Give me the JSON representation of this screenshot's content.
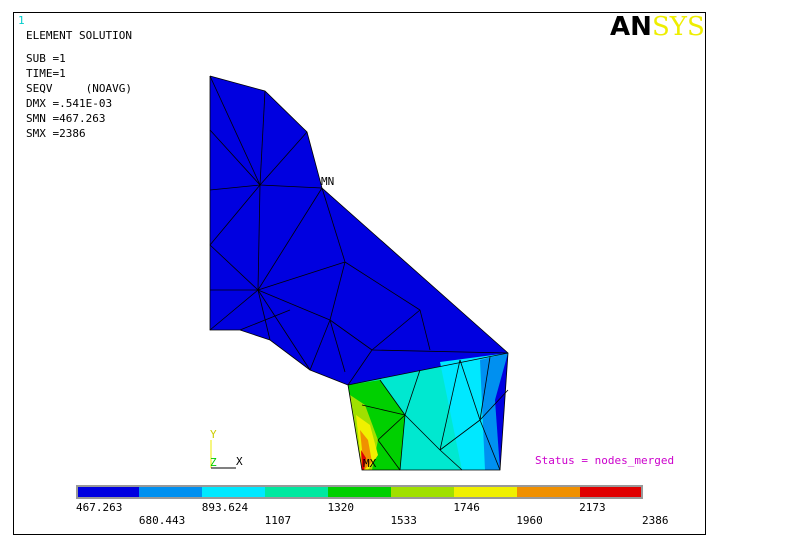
{
  "window_number": "1",
  "header": {
    "title": "ELEMENT SOLUTION",
    "lines": [
      "SUB =1",
      "TIME=1",
      "SEQV     (NOAVG)",
      "DMX =.541E-03",
      "SMN =467.263",
      "SMX =2386"
    ]
  },
  "logo": {
    "left": "AN",
    "right": "SYS"
  },
  "markers": {
    "min": "MN",
    "max": "MX"
  },
  "triad": {
    "y": "Y",
    "z": "Z",
    "x": "X"
  },
  "status": "Status = nodes_merged",
  "legend": {
    "labels": [
      "467.263",
      "680.443",
      "893.624",
      "1107",
      "1320",
      "1533",
      "1746",
      "1960",
      "2173",
      "2386"
    ]
  }
}
